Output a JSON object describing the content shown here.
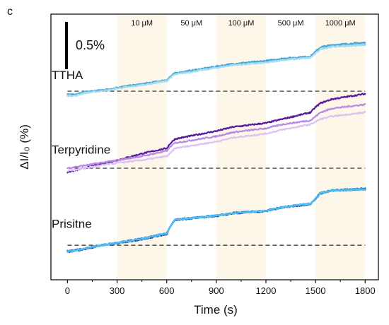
{
  "panel_label": "c",
  "chart_data": {
    "type": "line",
    "xlabel": "Time (s)",
    "ylabel": "ΔI/I₀ (%)",
    "xlim": [
      -100,
      1880
    ],
    "xticks": [
      0,
      300,
      600,
      900,
      1200,
      1500,
      1800
    ],
    "ylim": [
      0,
      10
    ],
    "scale_bar": {
      "label": "0.5%",
      "value": 0.5
    },
    "grid": false,
    "shaded_bands": [
      {
        "label": "10 μM",
        "x": [
          300,
          600
        ],
        "shaded": true
      },
      {
        "label": "50 μM",
        "x": [
          600,
          900
        ],
        "shaded": false
      },
      {
        "label": "100 μM",
        "x": [
          900,
          1200
        ],
        "shaded": true
      },
      {
        "label": "500 μM",
        "x": [
          1200,
          1500
        ],
        "shaded": false
      },
      {
        "label": "1000 μM",
        "x": [
          1500,
          1800
        ],
        "shaded": true
      }
    ],
    "groups": [
      {
        "label": "TTHA",
        "baseline": 7.1,
        "series": [
          {
            "color": "#7ec8ea",
            "x": [
              0,
              50,
              100,
              200,
              280,
              300,
              450,
              600,
              620,
              650,
              900,
              1000,
              1200,
              1300,
              1470,
              1500,
              1530,
              1600,
              1800
            ],
            "y": [
              6.95,
              6.95,
              7.05,
              7.12,
              7.18,
              7.22,
              7.35,
              7.5,
              7.62,
              7.75,
              8.0,
              8.1,
              8.2,
              8.3,
              8.38,
              8.55,
              8.72,
              8.8,
              8.88
            ]
          },
          {
            "color": "#4aa8d8",
            "x": [
              0,
              50,
              100,
              200,
              280,
              300,
              450,
              600,
              620,
              650,
              900,
              1000,
              1200,
              1300,
              1470,
              1500,
              1530,
              1600,
              1800
            ],
            "y": [
              6.97,
              6.97,
              7.07,
              7.14,
              7.2,
              7.24,
              7.37,
              7.52,
              7.64,
              7.78,
              8.03,
              8.13,
              8.24,
              8.33,
              8.41,
              8.59,
              8.76,
              8.84,
              8.93
            ]
          },
          {
            "color": "#a9dcef",
            "x": [
              0,
              50,
              100,
              200,
              280,
              300,
              450,
              600,
              620,
              650,
              900,
              1000,
              1200,
              1300,
              1470,
              1500,
              1530,
              1600,
              1800
            ],
            "y": [
              6.93,
              6.93,
              7.03,
              7.1,
              7.16,
              7.2,
              7.33,
              7.48,
              7.6,
              7.73,
              7.98,
              8.08,
              8.17,
              8.27,
              8.36,
              8.52,
              8.69,
              8.77,
              8.84
            ]
          }
        ]
      },
      {
        "label": "Terpyridine",
        "baseline": 4.2,
        "series": [
          {
            "color": "#5a1a9e",
            "x": [
              0,
              100,
              200,
              300,
              450,
              600,
              620,
              650,
              900,
              1000,
              1200,
              1300,
              1470,
              1500,
              1530,
              1600,
              1800
            ],
            "y": [
              4.05,
              4.2,
              4.35,
              4.5,
              4.75,
              4.95,
              5.12,
              5.3,
              5.6,
              5.75,
              5.9,
              6.05,
              6.3,
              6.5,
              6.65,
              6.8,
              7.0
            ]
          },
          {
            "color": "#b98be0",
            "x": [
              0,
              100,
              200,
              300,
              450,
              600,
              620,
              650,
              900,
              1000,
              1200,
              1300,
              1470,
              1500,
              1530,
              1600,
              1800
            ],
            "y": [
              4.2,
              4.3,
              4.4,
              4.5,
              4.65,
              4.85,
              5.0,
              5.15,
              5.4,
              5.55,
              5.7,
              5.85,
              6.0,
              6.15,
              6.3,
              6.45,
              6.6
            ]
          },
          {
            "color": "#dcc4f2",
            "x": [
              0,
              100,
              200,
              300,
              450,
              600,
              620,
              650,
              900,
              1000,
              1200,
              1300,
              1470,
              1500,
              1530,
              1600,
              1800
            ],
            "y": [
              4.1,
              4.2,
              4.3,
              4.4,
              4.5,
              4.65,
              4.75,
              4.95,
              5.2,
              5.35,
              5.5,
              5.65,
              5.85,
              5.95,
              6.05,
              6.15,
              6.3
            ]
          }
        ]
      },
      {
        "label": "Prisitne",
        "baseline": 1.3,
        "series": [
          {
            "color": "#1c2fb0",
            "x": [
              0,
              100,
              200,
              300,
              450,
              600,
              620,
              650,
              900,
              1000,
              1200,
              1300,
              1470,
              1500,
              1530,
              1600,
              1800
            ],
            "y": [
              1.05,
              1.15,
              1.28,
              1.38,
              1.52,
              1.72,
              1.98,
              2.25,
              2.4,
              2.5,
              2.58,
              2.72,
              2.85,
              3.05,
              3.25,
              3.35,
              3.42
            ]
          },
          {
            "color": "#2f7fe0",
            "x": [
              0,
              100,
              200,
              300,
              450,
              600,
              620,
              650,
              900,
              1000,
              1200,
              1300,
              1470,
              1500,
              1530,
              1600,
              1800
            ],
            "y": [
              1.08,
              1.18,
              1.3,
              1.4,
              1.55,
              1.75,
              2.0,
              2.27,
              2.42,
              2.52,
              2.6,
              2.74,
              2.87,
              3.07,
              3.27,
              3.37,
              3.44
            ]
          },
          {
            "color": "#4cc0ee",
            "x": [
              0,
              100,
              200,
              300,
              450,
              600,
              620,
              650,
              900,
              1000,
              1200,
              1300,
              1470,
              1500,
              1530,
              1600,
              1800
            ],
            "y": [
              1.06,
              1.16,
              1.29,
              1.39,
              1.54,
              1.74,
              1.99,
              2.26,
              2.41,
              2.51,
              2.59,
              2.73,
              2.86,
              3.06,
              3.26,
              3.36,
              3.4
            ]
          }
        ]
      }
    ],
    "colors": {
      "band": "#fdf7ea",
      "baseline": "#222222"
    }
  }
}
